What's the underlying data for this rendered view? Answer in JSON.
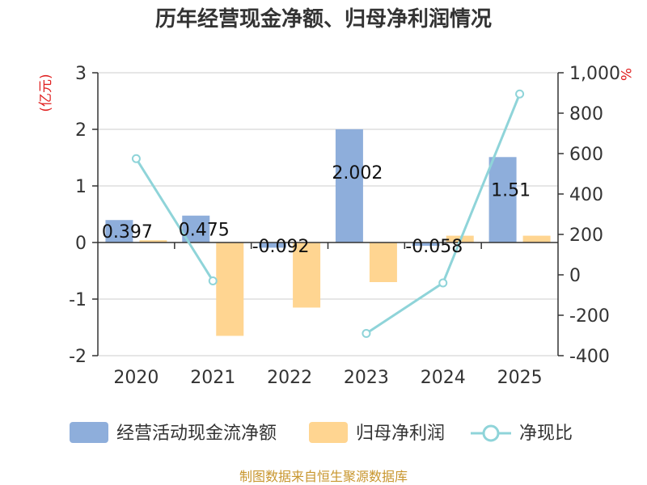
{
  "chart_data": {
    "type": "bar",
    "title": "历年经营现金净额、归母净利润情况",
    "categories": [
      "2020",
      "2021",
      "2022",
      "2023",
      "2024",
      "2025"
    ],
    "left_axis": {
      "unit": "(亿元)",
      "min": -2,
      "max": 3,
      "ticks": [
        "-2",
        "-1",
        "0",
        "1",
        "2",
        "3"
      ]
    },
    "right_axis": {
      "unit": "%",
      "min": -400,
      "max": 1000,
      "ticks": [
        "-400",
        "-200",
        "0",
        "200",
        "400",
        "600",
        "800",
        "1,000"
      ]
    },
    "series": [
      {
        "name": "经营活动现金流净额",
        "kind": "bar",
        "axis": "left",
        "color": "#8eaedb",
        "values": [
          0.397,
          0.475,
          -0.092,
          2.002,
          -0.058,
          1.51
        ],
        "labels": [
          "0.397",
          "0.475",
          "-0.092",
          "2.002",
          "-0.058",
          "1.51"
        ]
      },
      {
        "name": "归母净利润",
        "kind": "bar",
        "axis": "left",
        "color": "#ffd591",
        "values": [
          0.04,
          -1.65,
          -1.15,
          -0.7,
          0.12,
          0.12
        ]
      },
      {
        "name": "净现比",
        "kind": "line",
        "axis": "right",
        "color": "#8fd4d9",
        "values": [
          575,
          -30,
          null,
          -290,
          -40,
          895
        ]
      }
    ],
    "source": "制图数据来自恒生聚源数据库"
  }
}
